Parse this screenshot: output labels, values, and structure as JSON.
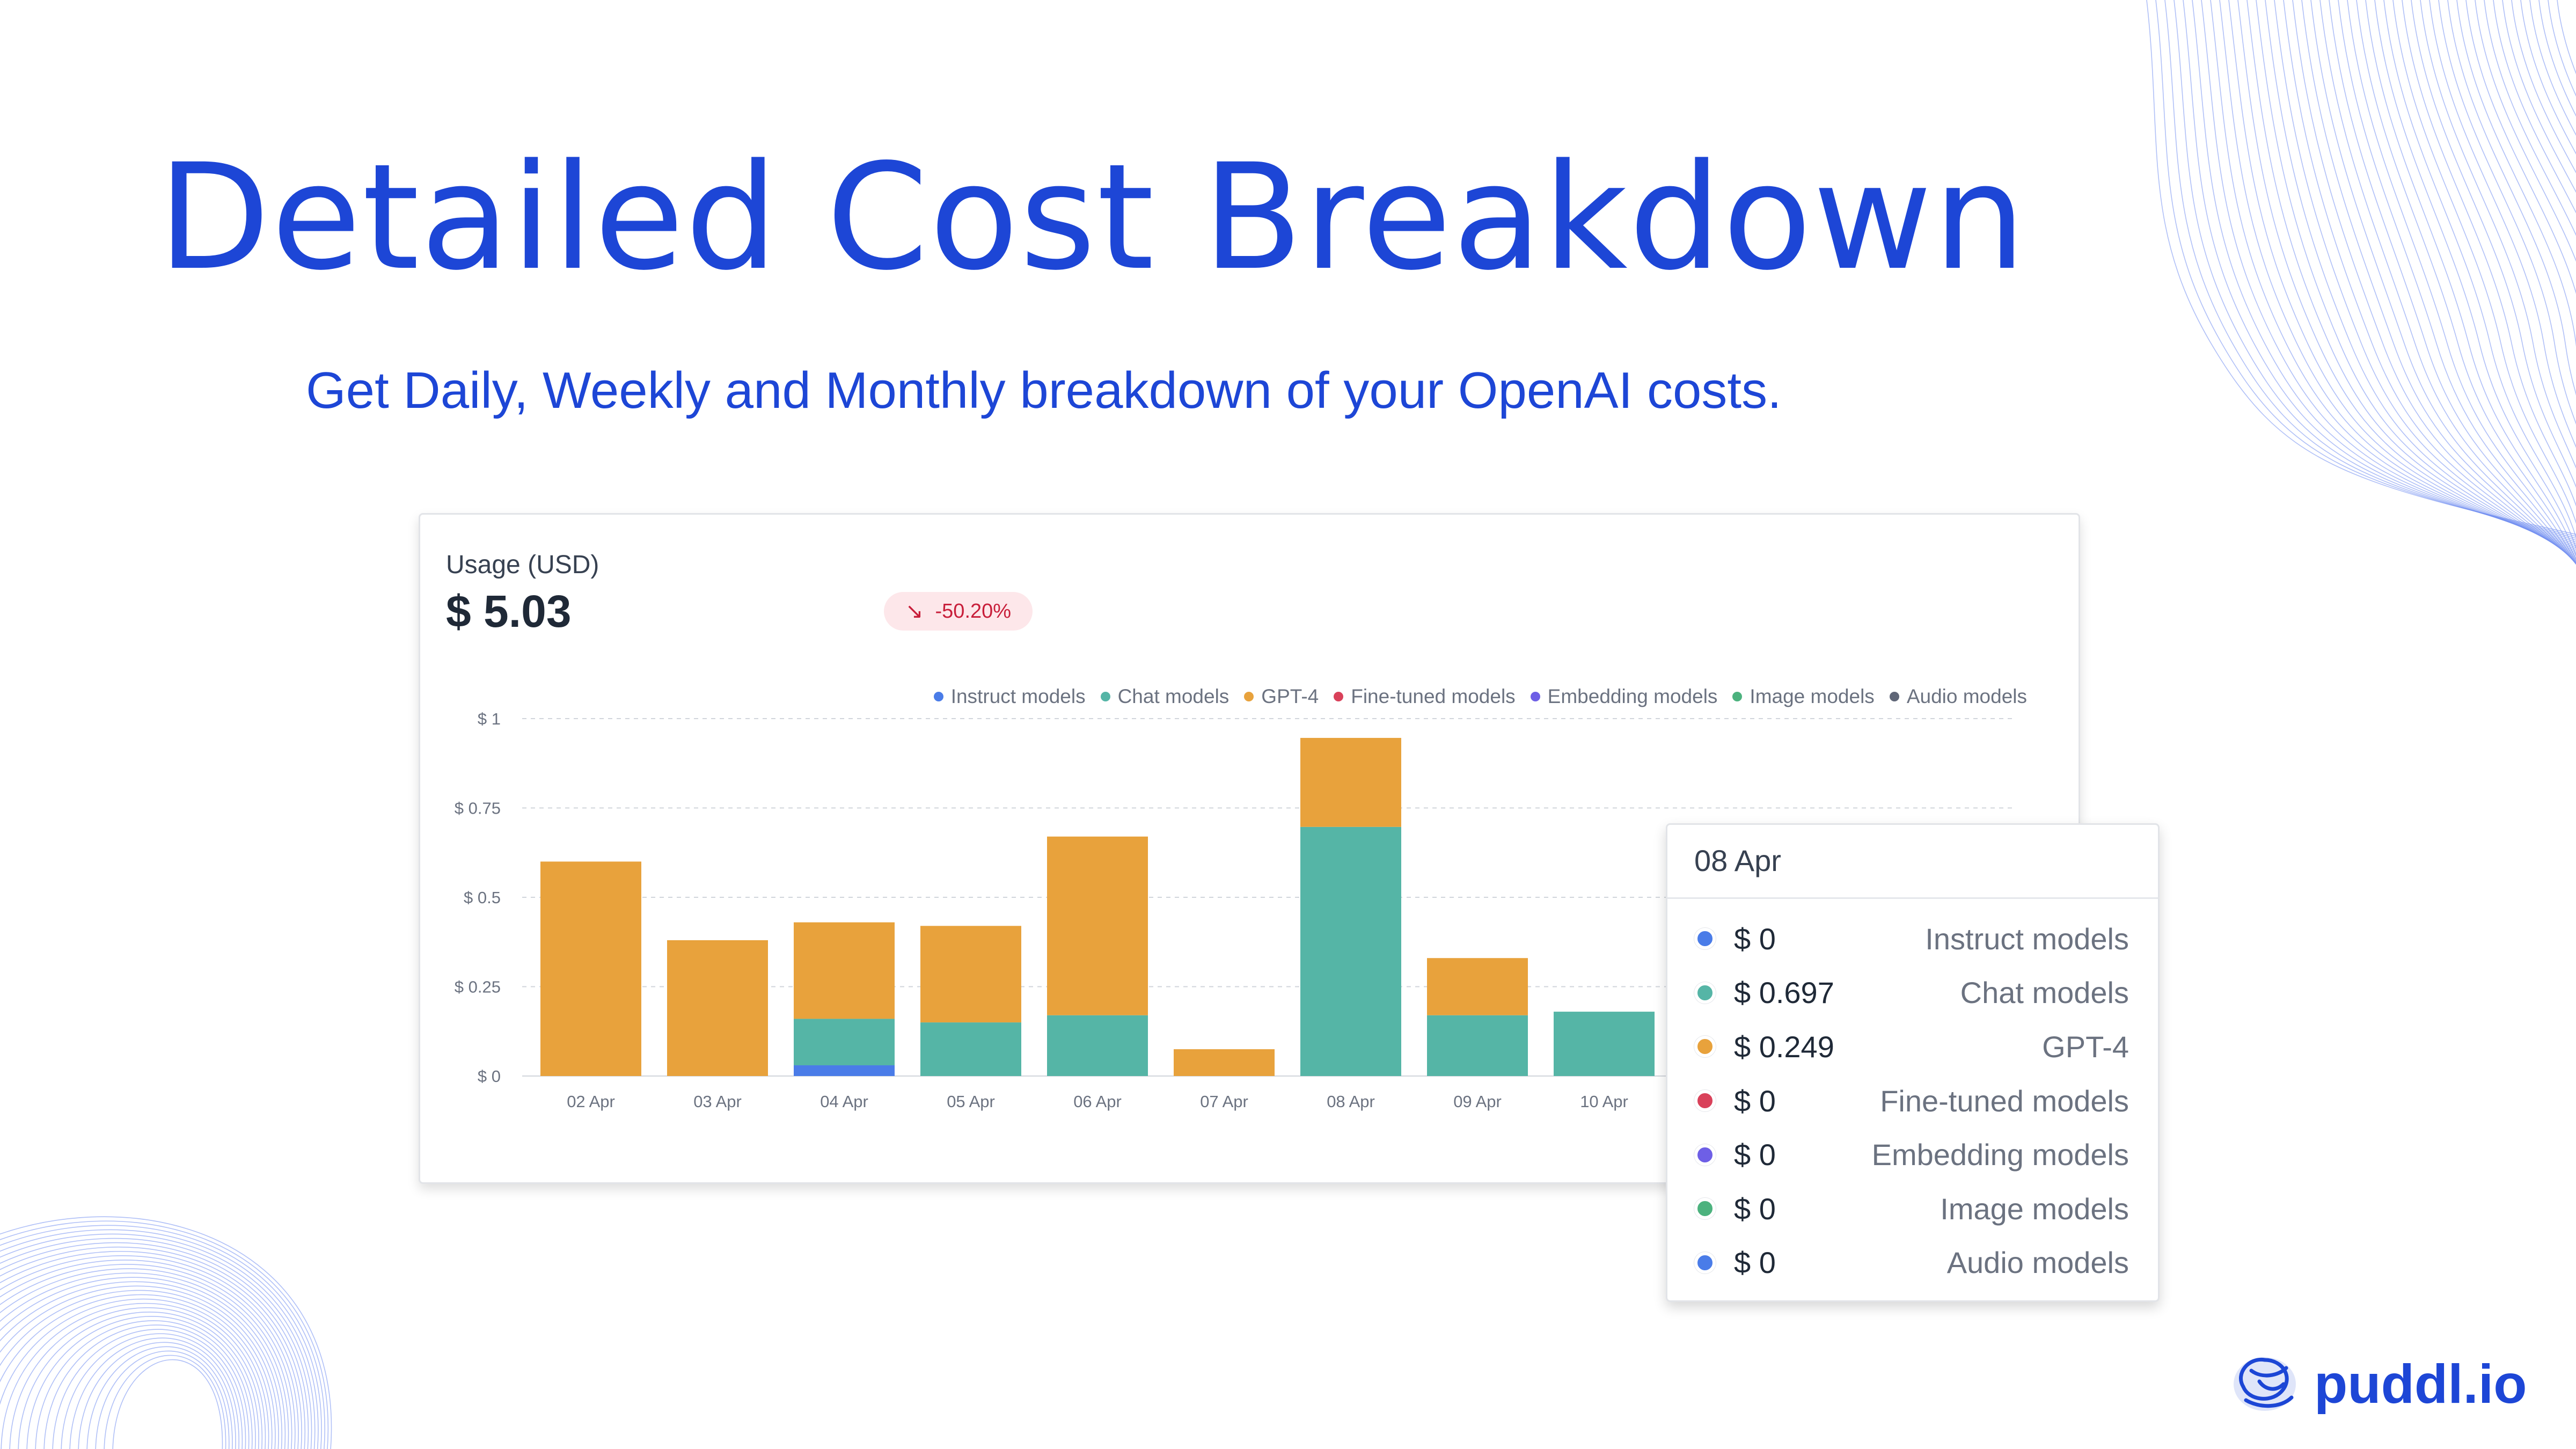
{
  "title": "Detailed Cost Breakdown",
  "subtitle": "Get Daily, Weekly and Monthly breakdown of your OpenAI costs.",
  "card": {
    "label": "Usage (USD)",
    "total": "$ 5.03",
    "delta": "-50.20%",
    "delta_icon": "trend-down-arrow-icon"
  },
  "colors": {
    "instruct": "#4a7ce8",
    "chat": "#55b5a6",
    "gpt4": "#e8a23c",
    "finetuned": "#d9415a",
    "embedding": "#6e5fe6",
    "image": "#4cb27e",
    "audio": "#5f6677",
    "accent": "#1d46d6"
  },
  "legend": [
    {
      "label": "Instruct models",
      "color": "#4a7ce8"
    },
    {
      "label": "Chat models",
      "color": "#55b5a6"
    },
    {
      "label": "GPT-4",
      "color": "#e8a23c"
    },
    {
      "label": "Fine-tuned models",
      "color": "#d9415a"
    },
    {
      "label": "Embedding models",
      "color": "#6e5fe6"
    },
    {
      "label": "Image models",
      "color": "#4cb27e"
    },
    {
      "label": "Audio models",
      "color": "#5f6677"
    }
  ],
  "chart_data": {
    "type": "bar",
    "stacked": true,
    "title": "Usage (USD)",
    "xlabel": "",
    "ylabel": "",
    "ylim": [
      0,
      1
    ],
    "yticks": [
      0,
      0.25,
      0.5,
      0.75,
      1
    ],
    "ytick_labels": [
      "$ 0",
      "$ 0.25",
      "$ 0.5",
      "$ 0.75",
      "$ 1"
    ],
    "grid": true,
    "legend_position": "top-right",
    "categories": [
      "02 Apr",
      "03 Apr",
      "04 Apr",
      "05 Apr",
      "06 Apr",
      "07 Apr",
      "08 Apr",
      "09 Apr",
      "10 Apr"
    ],
    "series": [
      {
        "name": "Instruct models",
        "color": "#4a7ce8",
        "values": [
          0,
          0,
          0.03,
          0,
          0,
          0,
          0,
          0,
          0
        ]
      },
      {
        "name": "Chat models",
        "color": "#55b5a6",
        "values": [
          0,
          0,
          0.13,
          0.15,
          0.17,
          0,
          0.697,
          0.17,
          0.18
        ]
      },
      {
        "name": "GPT-4",
        "color": "#e8a23c",
        "values": [
          0.6,
          0.38,
          0.27,
          0.27,
          0.5,
          0.075,
          0.249,
          0.16,
          0
        ]
      }
    ]
  },
  "tooltip": {
    "date": "08 Apr",
    "rows": [
      {
        "amount": "$ 0",
        "model": "Instruct models",
        "color": "#4a7ce8"
      },
      {
        "amount": "$ 0.697",
        "model": "Chat models",
        "color": "#55b5a6"
      },
      {
        "amount": "$ 0.249",
        "model": "GPT-4",
        "color": "#e8a23c"
      },
      {
        "amount": "$ 0",
        "model": "Fine-tuned models",
        "color": "#d9415a"
      },
      {
        "amount": "$ 0",
        "model": "Embedding models",
        "color": "#6e5fe6"
      },
      {
        "amount": "$ 0",
        "model": "Image models",
        "color": "#4cb27e"
      },
      {
        "amount": "$ 0",
        "model": "Audio models",
        "color": "#4a7ce8"
      }
    ]
  },
  "brand": {
    "name": "puddl.io",
    "logo_icon": "puddl-logo-icon"
  }
}
